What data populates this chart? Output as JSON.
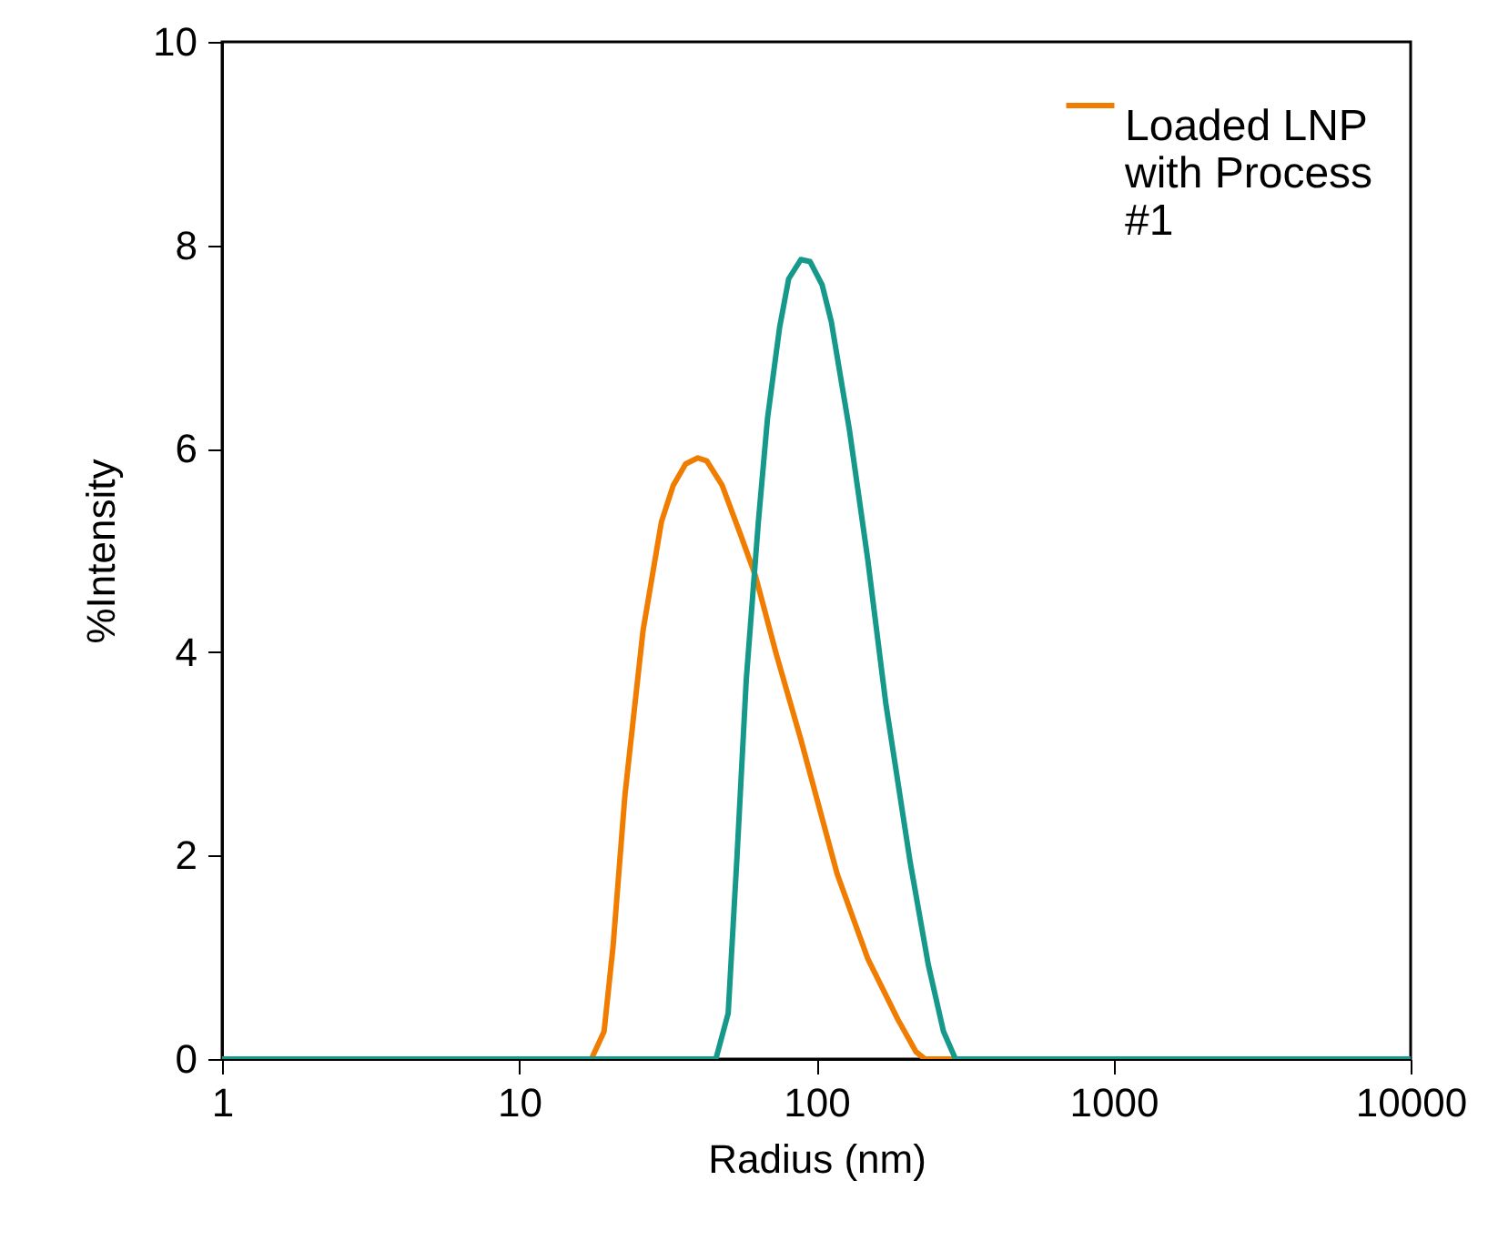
{
  "chart_data": {
    "type": "line",
    "xlabel": "Radius (nm)",
    "ylabel": "%Intensity",
    "log": "x",
    "xlim": [
      1,
      10000
    ],
    "xticks": [
      1,
      10,
      100,
      1000,
      10000
    ],
    "ylim": [
      0,
      10
    ],
    "yticks": [
      0,
      2,
      4,
      6,
      8,
      10
    ],
    "grid": false,
    "legend": "top right",
    "marker": "none",
    "line_style": "solid",
    "series": [
      {
        "name": "Loaded LNP with Process #1",
        "color": "#f07c00",
        "x": [
          1,
          17.5,
          19.3,
          20.7,
          22.7,
          26.1,
          30.1,
          33,
          36.3,
          39.9,
          42.8,
          48.2,
          55.5,
          62.4,
          73.5,
          88.7,
          117.5,
          148.8,
          188,
          216.6,
          232,
          289,
          10000
        ],
        "values": [
          0,
          0,
          0.27,
          1.11,
          2.6,
          4.21,
          5.28,
          5.64,
          5.85,
          5.91,
          5.88,
          5.64,
          5.16,
          4.75,
          3.97,
          3.14,
          1.82,
          0.99,
          0.39,
          0.07,
          0,
          0,
          0
        ]
      },
      {
        "color": "#16998a",
        "x": [
          1,
          45.9,
          50.5,
          54.1,
          58.1,
          63.8,
          68.5,
          75.2,
          80.7,
          88.7,
          95.2,
          104.6,
          112.3,
          129.3,
          148.8,
          171.4,
          206.8,
          238,
          267.9,
          294,
          10000
        ],
        "values": [
          0,
          0,
          0.45,
          2.0,
          3.73,
          5.28,
          6.3,
          7.19,
          7.67,
          7.86,
          7.84,
          7.61,
          7.25,
          6.18,
          4.92,
          3.49,
          1.94,
          0.93,
          0.27,
          0,
          0
        ]
      }
    ]
  }
}
